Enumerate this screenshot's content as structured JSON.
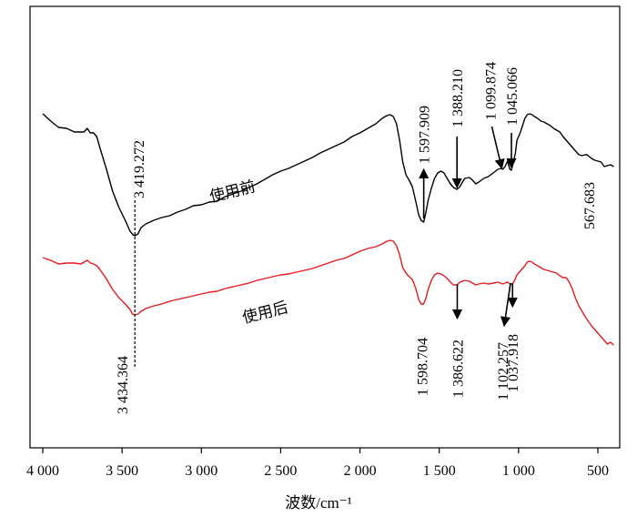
{
  "chart_data": {
    "type": "line",
    "title": "",
    "xlabel": "波数/cm⁻¹",
    "ylabel": "",
    "xlim": [
      4000,
      400
    ],
    "x_reversed": true,
    "y_ticks_shown": false,
    "grid": false,
    "legend": "none",
    "x_ticks": [
      {
        "value": 4000,
        "label": "4 000"
      },
      {
        "value": 3500,
        "label": "3 500"
      },
      {
        "value": 3000,
        "label": "3 000"
      },
      {
        "value": 2500,
        "label": "2 500"
      },
      {
        "value": 2000,
        "label": "2 000"
      },
      {
        "value": 1500,
        "label": "1 500"
      },
      {
        "value": 1000,
        "label": "1 000"
      },
      {
        "value": 500,
        "label": "500"
      }
    ],
    "series": [
      {
        "name": "使用前",
        "color": "#000000",
        "points": [
          [
            4000,
            125
          ],
          [
            3950,
            133
          ],
          [
            3900,
            140
          ],
          [
            3850,
            141
          ],
          [
            3800,
            145
          ],
          [
            3760,
            145
          ],
          [
            3740,
            145
          ],
          [
            3720,
            141
          ],
          [
            3700,
            146
          ],
          [
            3680,
            146
          ],
          [
            3660,
            150
          ],
          [
            3640,
            162
          ],
          [
            3600,
            185
          ],
          [
            3560,
            210
          ],
          [
            3520,
            228
          ],
          [
            3480,
            242
          ],
          [
            3450,
            254
          ],
          [
            3430,
            258
          ],
          [
            3419,
            259
          ],
          [
            3400,
            257
          ],
          [
            3380,
            250
          ],
          [
            3350,
            246
          ],
          [
            3300,
            242
          ],
          [
            3250,
            239
          ],
          [
            3200,
            237
          ],
          [
            3150,
            233
          ],
          [
            3100,
            230
          ],
          [
            3050,
            226
          ],
          [
            3000,
            225
          ],
          [
            2950,
            222
          ],
          [
            2900,
            221
          ],
          [
            2850,
            216
          ],
          [
            2800,
            213
          ],
          [
            2750,
            210
          ],
          [
            2700,
            206
          ],
          [
            2650,
            202
          ],
          [
            2600,
            197
          ],
          [
            2550,
            192
          ],
          [
            2500,
            188
          ],
          [
            2450,
            185
          ],
          [
            2400,
            181
          ],
          [
            2350,
            177
          ],
          [
            2300,
            173
          ],
          [
            2250,
            168
          ],
          [
            2200,
            164
          ],
          [
            2150,
            160
          ],
          [
            2100,
            156
          ],
          [
            2050,
            150
          ],
          [
            2000,
            146
          ],
          [
            1950,
            141
          ],
          [
            1900,
            136
          ],
          [
            1860,
            130
          ],
          [
            1830,
            127
          ],
          [
            1810,
            126
          ],
          [
            1790,
            128
          ],
          [
            1770,
            136
          ],
          [
            1750,
            154
          ],
          [
            1730,
            178
          ],
          [
            1710,
            192
          ],
          [
            1690,
            198
          ],
          [
            1670,
            205
          ],
          [
            1650,
            220
          ],
          [
            1630,
            236
          ],
          [
            1615,
            242
          ],
          [
            1598,
            244
          ],
          [
            1585,
            234
          ],
          [
            1570,
            220
          ],
          [
            1550,
            207
          ],
          [
            1530,
            196
          ],
          [
            1510,
            190
          ],
          [
            1490,
            188
          ],
          [
            1470,
            190
          ],
          [
            1450,
            196
          ],
          [
            1430,
            202
          ],
          [
            1410,
            206
          ],
          [
            1388,
            208
          ],
          [
            1370,
            205
          ],
          [
            1340,
            196
          ],
          [
            1310,
            195
          ],
          [
            1290,
            198
          ],
          [
            1270,
            202
          ],
          [
            1250,
            200
          ],
          [
            1220,
            196
          ],
          [
            1190,
            194
          ],
          [
            1160,
            190
          ],
          [
            1130,
            186
          ],
          [
            1110,
            185
          ],
          [
            1099,
            186
          ],
          [
            1085,
            183
          ],
          [
            1070,
            177
          ],
          [
            1055,
            186
          ],
          [
            1045,
            187
          ],
          [
            1035,
            180
          ],
          [
            1020,
            168
          ],
          [
            1010,
            154
          ],
          [
            1000,
            150
          ],
          [
            990,
            146
          ],
          [
            975,
            138
          ],
          [
            960,
            130
          ],
          [
            945,
            126
          ],
          [
            930,
            125
          ],
          [
            915,
            126
          ],
          [
            900,
            128
          ],
          [
            880,
            130
          ],
          [
            860,
            133
          ],
          [
            840,
            134
          ],
          [
            820,
            136
          ],
          [
            800,
            138
          ],
          [
            780,
            141
          ],
          [
            760,
            143
          ],
          [
            740,
            145
          ],
          [
            720,
            150
          ],
          [
            700,
            154
          ],
          [
            680,
            158
          ],
          [
            660,
            162
          ],
          [
            640,
            166
          ],
          [
            620,
            170
          ],
          [
            600,
            171
          ],
          [
            580,
            170
          ],
          [
            568,
            170
          ],
          [
            555,
            172
          ],
          [
            540,
            174
          ],
          [
            520,
            176
          ],
          [
            500,
            177
          ],
          [
            480,
            178
          ],
          [
            460,
            183
          ],
          [
            440,
            182
          ],
          [
            420,
            181
          ],
          [
            400,
            183
          ]
        ]
      },
      {
        "name": "使用后",
        "color": "#e8191f",
        "points": [
          [
            4000,
            283
          ],
          [
            3950,
            286
          ],
          [
            3900,
            290
          ],
          [
            3850,
            289
          ],
          [
            3800,
            289
          ],
          [
            3760,
            290
          ],
          [
            3740,
            288
          ],
          [
            3720,
            286
          ],
          [
            3700,
            289
          ],
          [
            3680,
            290
          ],
          [
            3660,
            292
          ],
          [
            3640,
            296
          ],
          [
            3600,
            306
          ],
          [
            3560,
            318
          ],
          [
            3520,
            327
          ],
          [
            3480,
            334
          ],
          [
            3450,
            340
          ],
          [
            3434,
            345
          ],
          [
            3420,
            346
          ],
          [
            3400,
            345
          ],
          [
            3380,
            342
          ],
          [
            3350,
            339
          ],
          [
            3300,
            336
          ],
          [
            3250,
            334
          ],
          [
            3200,
            331
          ],
          [
            3150,
            329
          ],
          [
            3100,
            327
          ],
          [
            3050,
            325
          ],
          [
            3000,
            323
          ],
          [
            2950,
            321
          ],
          [
            2900,
            320
          ],
          [
            2850,
            317
          ],
          [
            2800,
            315
          ],
          [
            2750,
            313
          ],
          [
            2700,
            311
          ],
          [
            2650,
            308
          ],
          [
            2600,
            306
          ],
          [
            2550,
            304
          ],
          [
            2500,
            302
          ],
          [
            2450,
            301
          ],
          [
            2400,
            299
          ],
          [
            2350,
            297
          ],
          [
            2300,
            295
          ],
          [
            2250,
            292
          ],
          [
            2200,
            289
          ],
          [
            2150,
            286
          ],
          [
            2100,
            284
          ],
          [
            2050,
            280
          ],
          [
            2000,
            276
          ],
          [
            1950,
            273
          ],
          [
            1900,
            271
          ],
          [
            1860,
            268
          ],
          [
            1830,
            265
          ],
          [
            1810,
            264
          ],
          [
            1790,
            265
          ],
          [
            1770,
            270
          ],
          [
            1750,
            280
          ],
          [
            1730,
            294
          ],
          [
            1710,
            300
          ],
          [
            1690,
            304
          ],
          [
            1670,
            307
          ],
          [
            1650,
            316
          ],
          [
            1630,
            329
          ],
          [
            1615,
            334
          ],
          [
            1599,
            334
          ],
          [
            1585,
            328
          ],
          [
            1570,
            318
          ],
          [
            1550,
            308
          ],
          [
            1530,
            302
          ],
          [
            1510,
            300
          ],
          [
            1490,
            301
          ],
          [
            1470,
            303
          ],
          [
            1450,
            306
          ],
          [
            1430,
            310
          ],
          [
            1410,
            313
          ],
          [
            1387,
            313
          ],
          [
            1370,
            310
          ],
          [
            1340,
            308
          ],
          [
            1310,
            309
          ],
          [
            1290,
            311
          ],
          [
            1270,
            313
          ],
          [
            1250,
            312
          ],
          [
            1220,
            311
          ],
          [
            1190,
            312
          ],
          [
            1160,
            311
          ],
          [
            1130,
            310
          ],
          [
            1102,
            312
          ],
          [
            1085,
            311
          ],
          [
            1070,
            310
          ],
          [
            1055,
            312
          ],
          [
            1038,
            312
          ],
          [
            1025,
            308
          ],
          [
            1010,
            302
          ],
          [
            995,
            299
          ],
          [
            980,
            296
          ],
          [
            960,
            292
          ],
          [
            945,
            288
          ],
          [
            930,
            287
          ],
          [
            915,
            288
          ],
          [
            900,
            290
          ],
          [
            880,
            292
          ],
          [
            860,
            294
          ],
          [
            840,
            296
          ],
          [
            820,
            297
          ],
          [
            800,
            298
          ],
          [
            780,
            299
          ],
          [
            760,
            300
          ],
          [
            740,
            303
          ],
          [
            720,
            305
          ],
          [
            700,
            305
          ],
          [
            680,
            310
          ],
          [
            660,
            318
          ],
          [
            640,
            328
          ],
          [
            620,
            336
          ],
          [
            600,
            342
          ],
          [
            580,
            348
          ],
          [
            560,
            353
          ],
          [
            540,
            358
          ],
          [
            520,
            362
          ],
          [
            500,
            366
          ],
          [
            480,
            370
          ],
          [
            460,
            374
          ],
          [
            440,
            378
          ],
          [
            420,
            376
          ],
          [
            400,
            379
          ]
        ]
      }
    ],
    "annotations": [
      {
        "label": "3 419.272",
        "x": 3419.272,
        "series": 0
      },
      {
        "label": "3 434.364",
        "x": 3434.364,
        "series": 1
      },
      {
        "label": "1 597.909",
        "x": 1597.909,
        "series": 0
      },
      {
        "label": "1 388.210",
        "x": 1388.21,
        "series": 0
      },
      {
        "label": "1 099.874",
        "x": 1099.874,
        "series": 0
      },
      {
        "label": "1 045.066",
        "x": 1045.066,
        "series": 0
      },
      {
        "label": "567.683",
        "x": 567.683,
        "series": 0
      },
      {
        "label": "1 598.704",
        "x": 1598.704,
        "series": 1
      },
      {
        "label": "1 386.622",
        "x": 1386.622,
        "series": 1
      },
      {
        "label": "1 102.257",
        "x": 1102.257,
        "series": 1
      },
      {
        "label": "1 037.918",
        "x": 1037.918,
        "series": 1
      }
    ]
  }
}
